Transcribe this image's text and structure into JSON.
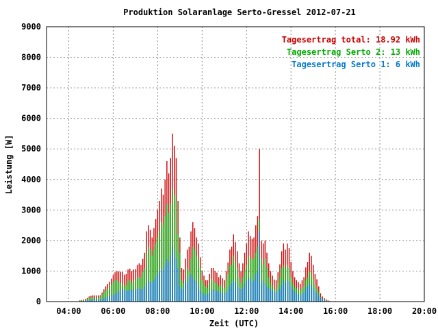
{
  "chart_data": {
    "type": "bar",
    "title": "Produktion Solaranlage Serto-Gressel 2012-07-21",
    "xlabel": "Zeit (UTC)",
    "ylabel": "Leistung [W]",
    "xlim": [
      "03:00",
      "20:00"
    ],
    "ylim": [
      0,
      9000
    ],
    "grid": true,
    "legend_position": "top-right",
    "stacked": true,
    "x_ticks": [
      "04:00",
      "06:00",
      "08:00",
      "10:00",
      "12:00",
      "14:00",
      "16:00",
      "18:00",
      "20:00"
    ],
    "y_ticks": [
      "0",
      "1000",
      "2000",
      "3000",
      "4000",
      "5000",
      "6000",
      "7000",
      "8000",
      "9000"
    ],
    "legend": [
      {
        "label": "Tagesertrag total: 18.92 kWh",
        "color": "#cc0000"
      },
      {
        "label": "Tagesertrag Serto 2: 13 kWh",
        "color": "#00aa00"
      },
      {
        "label": "Tagesertrag Serto 1: 6 kWh",
        "color": "#0077cc"
      }
    ],
    "time_interval_minutes": 5,
    "x_start": "04:30",
    "series": [
      {
        "name": "Serto 1",
        "color": "#0077cc",
        "values": [
          10,
          15,
          20,
          30,
          40,
          50,
          55,
          60,
          70,
          80,
          70,
          60,
          80,
          100,
          130,
          160,
          180,
          200,
          220,
          260,
          300,
          340,
          380,
          400,
          380,
          360,
          350,
          380,
          400,
          380,
          360,
          420,
          440,
          400,
          420,
          500,
          600,
          700,
          650,
          600,
          700,
          800,
          900,
          1000,
          1100,
          1000,
          1200,
          1400,
          1300,
          1500,
          1800,
          1600,
          1400,
          1100,
          500,
          400,
          450,
          700,
          600,
          800,
          900,
          800,
          700,
          600,
          500,
          350,
          300,
          250,
          200,
          250,
          300,
          350,
          400,
          380,
          350,
          300,
          320,
          280,
          250,
          300,
          380,
          500,
          600,
          700,
          650,
          550,
          450,
          400,
          450,
          600,
          700,
          800,
          750,
          650,
          700,
          900,
          1000,
          2300,
          600,
          700,
          600,
          500,
          450,
          400,
          350,
          320,
          300,
          360,
          420,
          550,
          700,
          600,
          700,
          650,
          500,
          400,
          320,
          260,
          240,
          220,
          250,
          300,
          420,
          500,
          600,
          550,
          450,
          350,
          280,
          200,
          120,
          80,
          50,
          30,
          20,
          10
        ]
      },
      {
        "name": "Serto 2",
        "color": "#00aa00",
        "values": [
          30,
          35,
          50,
          60,
          80,
          120,
          135,
          140,
          130,
          120,
          130,
          150,
          220,
          300,
          370,
          420,
          470,
          550,
          650,
          700,
          700,
          640,
          600,
          570,
          500,
          540,
          700,
          700,
          600,
          670,
          700,
          780,
          810,
          800,
          980,
          1100,
          1600,
          1800,
          1700,
          1500,
          1700,
          1900,
          2100,
          2300,
          2600,
          2500,
          2800,
          3200,
          2900,
          3200,
          3700,
          3500,
          3300,
          2200,
          1600,
          700,
          600,
          700,
          1100,
          1000,
          1400,
          1800,
          1700,
          1500,
          1400,
          1100,
          700,
          600,
          500,
          450,
          600,
          750,
          700,
          620,
          600,
          500,
          550,
          480,
          450,
          700,
          900,
          1200,
          1200,
          1500,
          1300,
          1100,
          800,
          600,
          800,
          1000,
          1200,
          1500,
          1400,
          1400,
          1400,
          1600,
          1800,
          2700,
          1400,
          1200,
          1400,
          1100,
          800,
          600,
          500,
          400,
          400,
          600,
          800,
          1100,
          1200,
          1100,
          1200,
          1100,
          800,
          600,
          480,
          440,
          400,
          360,
          450,
          500,
          700,
          800,
          1000,
          950,
          750,
          550,
          450,
          300,
          150,
          90,
          60,
          40,
          20,
          10
        ]
      },
      {
        "name": "total",
        "color": "#cc0000",
        "values": [
          40,
          50,
          70,
          90,
          120,
          170,
          190,
          200,
          200,
          200,
          200,
          210,
          300,
          400,
          500,
          580,
          650,
          750,
          870,
          960,
          1000,
          980,
          980,
          970,
          880,
          900,
          1050,
          1080,
          1000,
          1050,
          1060,
          1200,
          1250,
          1200,
          1400,
          1600,
          2300,
          2500,
          2350,
          2100,
          2400,
          2700,
          3000,
          3300,
          3700,
          3500,
          4000,
          4600,
          4200,
          4700,
          5500,
          5100,
          4700,
          3300,
          2100,
          1100,
          1050,
          1400,
          1700,
          1800,
          2300,
          2600,
          2400,
          2100,
          1900,
          1450,
          1000,
          850,
          700,
          700,
          900,
          1100,
          1100,
          1000,
          950,
          800,
          870,
          760,
          700,
          1000,
          1280,
          1700,
          1800,
          2200,
          1950,
          1650,
          1250,
          1000,
          1250,
          1600,
          1900,
          2300,
          2150,
          2050,
          2100,
          2500,
          2800,
          5000,
          2000,
          1900,
          2000,
          1600,
          1250,
          1000,
          850,
          720,
          700,
          960,
          1220,
          1650,
          1900,
          1700,
          1900,
          1750,
          1300,
          1000,
          800,
          700,
          640,
          580,
          700,
          800,
          1120,
          1300,
          1600,
          1500,
          1200,
          900,
          730,
          500,
          270,
          170,
          110,
          70,
          40,
          20
        ]
      }
    ]
  }
}
